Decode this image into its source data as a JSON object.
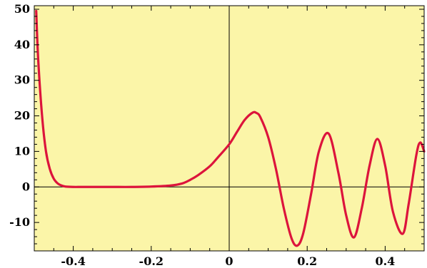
{
  "chart_data": {
    "type": "line",
    "title": "",
    "xlabel": "",
    "ylabel": "",
    "xlim": [
      -0.5,
      0.5
    ],
    "ylim": [
      -18,
      51
    ],
    "x_ticks": [
      -0.4,
      -0.2,
      0,
      0.2,
      0.4
    ],
    "x_tick_labels": [
      "-0.4",
      "-0.2",
      "0",
      "0.2",
      "0.4"
    ],
    "y_ticks": [
      -10,
      0,
      10,
      20,
      30,
      40,
      50
    ],
    "y_tick_labels": [
      "-10",
      "0",
      "10",
      "20",
      "30",
      "40",
      "50"
    ],
    "grid": false,
    "frame": true,
    "axes_cross_at_origin": true,
    "colors": {
      "plot_background": "#fbf5a8",
      "line": "#dc143c",
      "axis": "#000000"
    },
    "series": [
      {
        "x": [
          -0.495,
          -0.49,
          -0.48,
          -0.47,
          -0.46,
          -0.45,
          -0.44,
          -0.43,
          -0.42,
          -0.4,
          -0.38,
          -0.35,
          -0.3,
          -0.25,
          -0.2,
          -0.15,
          -0.12,
          -0.1,
          -0.08,
          -0.05,
          -0.03,
          0,
          0.02,
          0.04,
          0.06,
          0.07,
          0.08,
          0.1,
          0.12,
          0.14,
          0.16,
          0.175,
          0.19,
          0.21,
          0.23,
          0.255,
          0.28,
          0.3,
          0.32,
          0.34,
          0.36,
          0.38,
          0.4,
          0.42,
          0.445,
          0.46,
          0.48,
          0.49,
          0.5
        ],
        "y": [
          49.5,
          36,
          20,
          10,
          5,
          2.3,
          1,
          0.4,
          0.1,
          0,
          0,
          0,
          0,
          0,
          0.1,
          0.4,
          1,
          2,
          3.3,
          5.8,
          8.2,
          12,
          15.5,
          18.9,
          20.9,
          20.8,
          19.6,
          14,
          5,
          -6,
          -14.5,
          -16.5,
          -13,
          -2,
          10,
          15,
          4,
          -8,
          -14.2,
          -6,
          6,
          13.5,
          6,
          -7,
          -13.2,
          -5,
          9,
          12.5,
          10
        ]
      }
    ]
  }
}
